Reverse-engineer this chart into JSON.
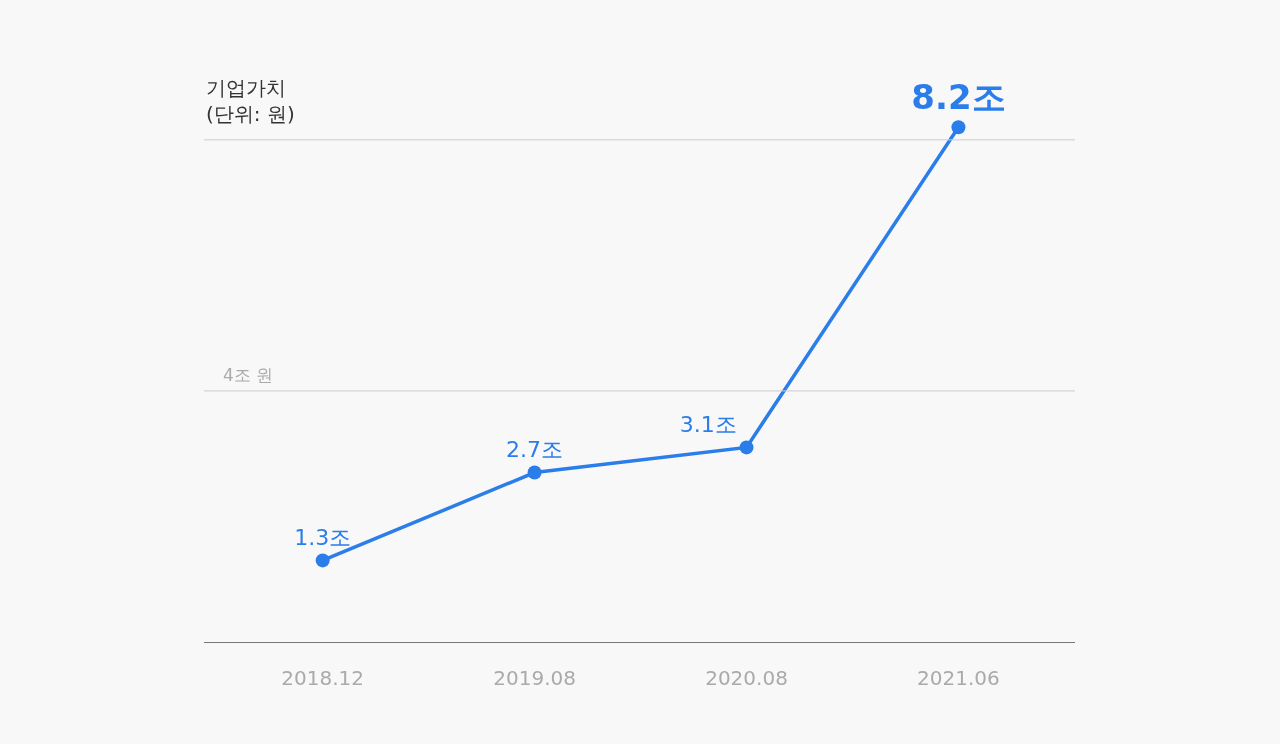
{
  "chart_data": {
    "type": "line",
    "ylabel": "기업가치\n(단위: 원)",
    "categories": [
      "2018.12",
      "2019.08",
      "2020.08",
      "2021.06"
    ],
    "series": [
      {
        "color": "#2b7de9",
        "values": [
          1.3,
          2.7,
          3.1,
          8.2
        ],
        "value_labels": [
          "1.3조",
          "2.7조",
          "3.1조",
          "8.2조"
        ]
      }
    ],
    "ref_lines": [
      {
        "axis": "y",
        "value": 4,
        "label": "4조 원",
        "color": "#cccccc"
      },
      {
        "axis": "y",
        "value": 8,
        "color": "#cccccc"
      }
    ],
    "legend": false,
    "marker": "circle",
    "line_style": "solid"
  }
}
